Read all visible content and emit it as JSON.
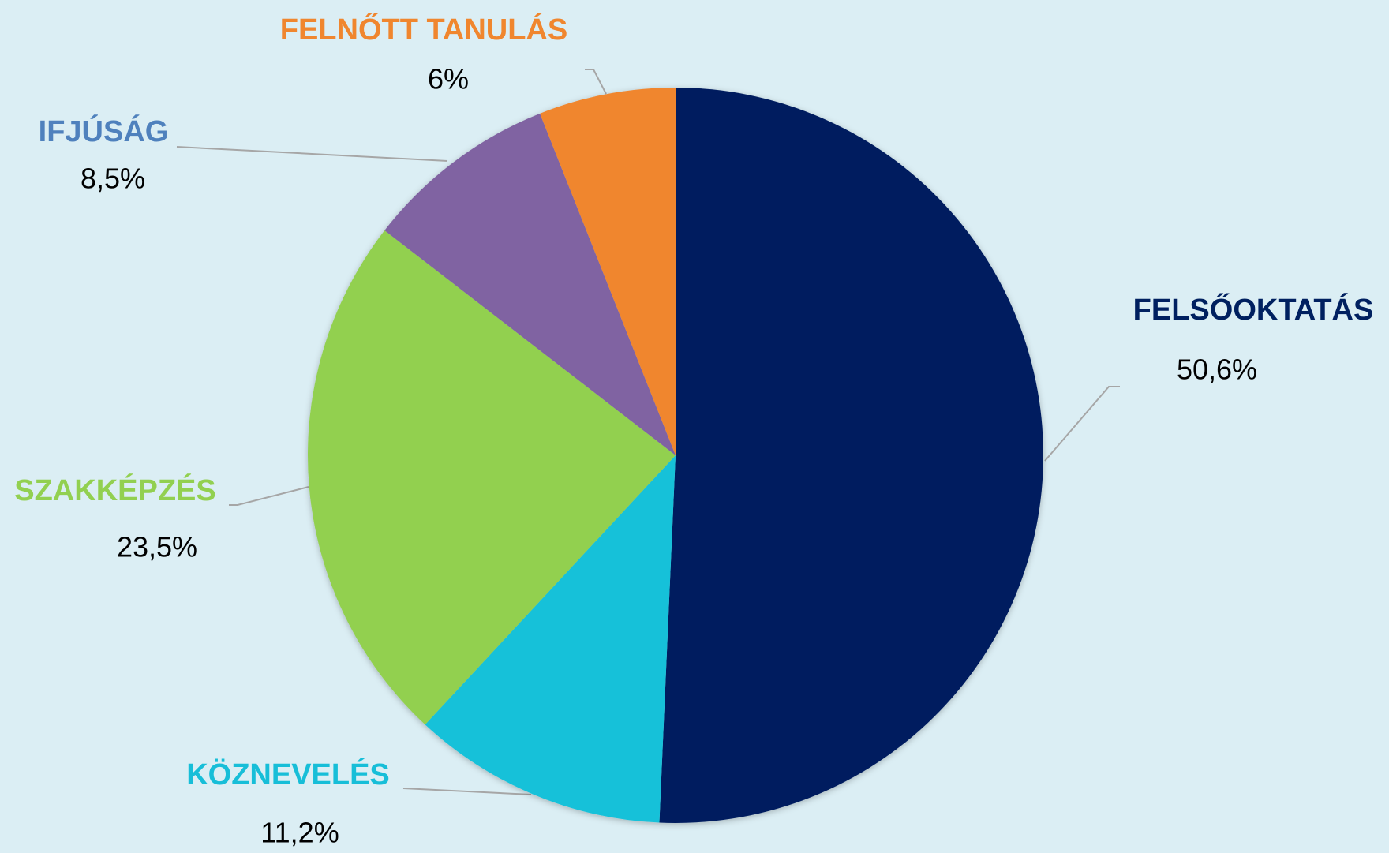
{
  "chart_data": {
    "type": "pie",
    "categories": [
      "FELSŐOKTATÁS",
      "KÖZNEVELÉS",
      "SZAKKÉPZÉS",
      "IFJÚSÁG",
      "FELNŐTT TANULÁS"
    ],
    "values": [
      50.6,
      11.2,
      23.5,
      8.5,
      6
    ],
    "value_labels": [
      "50,6%",
      "11,2%",
      "23,5%",
      "8,5%",
      "6%"
    ],
    "colors": [
      "#001f5f",
      "#17c1d9",
      "#92d050",
      "#8064a2",
      "#f0862e"
    ],
    "label_colors": [
      "#002060",
      "#17bed8",
      "#92d050",
      "#4f81bd",
      "#f0862e"
    ]
  }
}
